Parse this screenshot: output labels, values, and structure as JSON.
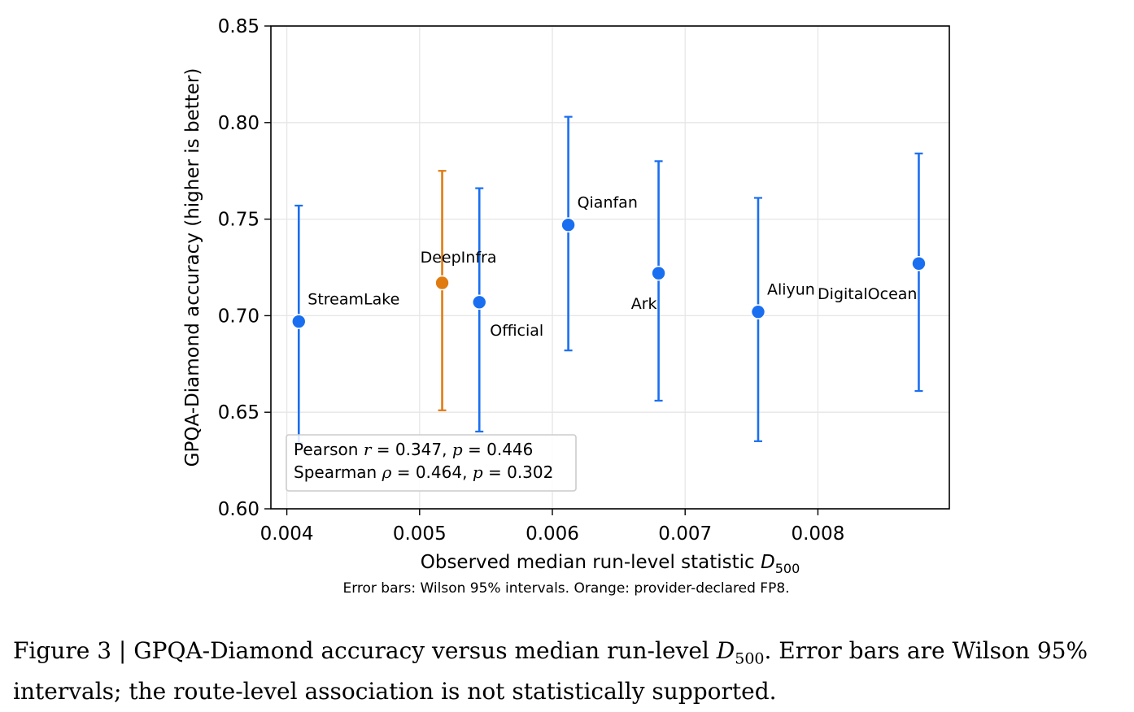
{
  "chart_data": {
    "type": "scatter",
    "title": "",
    "xlabel_main": "Observed median run-level statistic ",
    "xlabel_var": "D",
    "xlabel_sub": "500",
    "ylabel": "GPQA-Diamond accuracy (higher is better)",
    "note": "Error bars: Wilson 95% intervals. Orange: provider-declared FP8.",
    "xlim": [
      0.00388,
      0.00899
    ],
    "ylim": [
      0.6,
      0.85
    ],
    "xticks": [
      0.004,
      0.005,
      0.006,
      0.007,
      0.008
    ],
    "xtick_labels": [
      "0.004",
      "0.005",
      "0.006",
      "0.007",
      "0.008"
    ],
    "yticks": [
      0.6,
      0.65,
      0.7,
      0.75,
      0.8,
      0.85
    ],
    "ytick_labels": [
      "0.60",
      "0.65",
      "0.70",
      "0.75",
      "0.80",
      "0.85"
    ],
    "grid": true,
    "colors": {
      "standard": "#1a6ff0",
      "fp8": "#e07b10",
      "grid": "#e6e6e6"
    },
    "points": [
      {
        "label": "StreamLake",
        "x": 0.00409,
        "y": 0.697,
        "low": 0.634,
        "high": 0.757,
        "fp8": false,
        "label_pos": "upper-right"
      },
      {
        "label": "DeepInfra",
        "x": 0.00517,
        "y": 0.717,
        "low": 0.651,
        "high": 0.775,
        "fp8": true,
        "label_pos": "above"
      },
      {
        "label": "Official",
        "x": 0.00545,
        "y": 0.707,
        "low": 0.64,
        "high": 0.766,
        "fp8": false,
        "label_pos": "lower-right"
      },
      {
        "label": "Qianfan",
        "x": 0.00612,
        "y": 0.747,
        "low": 0.682,
        "high": 0.803,
        "fp8": false,
        "label_pos": "upper-right"
      },
      {
        "label": "Ark",
        "x": 0.0068,
        "y": 0.722,
        "low": 0.656,
        "high": 0.78,
        "fp8": false,
        "label_pos": "lower-left"
      },
      {
        "label": "Aliyun",
        "x": 0.00755,
        "y": 0.702,
        "low": 0.635,
        "high": 0.761,
        "fp8": false,
        "label_pos": "upper-right"
      },
      {
        "label": "DigitalOcean",
        "x": 0.00876,
        "y": 0.727,
        "low": 0.661,
        "high": 0.784,
        "fp8": false,
        "label_pos": "lower-left"
      }
    ],
    "stats_box": {
      "line1": {
        "name": "Pearson ",
        "sym": "r",
        "eq": " = 0.347, ",
        "p": "p",
        "pval": " = 0.446"
      },
      "line2": {
        "name": "Spearman ",
        "sym": "ρ",
        "eq": " = 0.464, ",
        "p": "p",
        "pval": " = 0.302"
      },
      "placement": "lower-left"
    }
  },
  "caption": {
    "prefix": "Figure 3 | GPQA-Diamond accuracy versus median run-level ",
    "var": "D",
    "sub": "500",
    "suffix": ". Error bars are Wilson 95% intervals; the route-level association is not statistically supported."
  }
}
